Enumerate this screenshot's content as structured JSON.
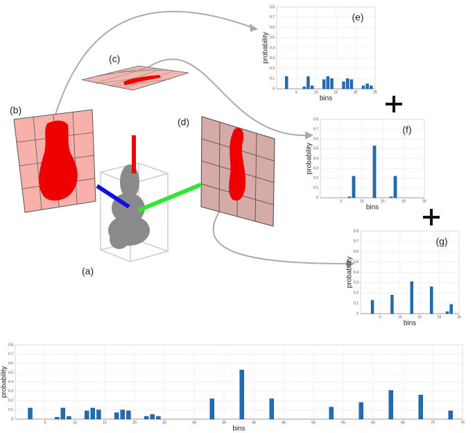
{
  "panel_labels": [
    "(a)",
    "(b)",
    "(c)",
    "(d)"
  ],
  "chart_data": [
    {
      "type": "bar",
      "label": "(e)",
      "xlabel": "bins",
      "ylabel": "probability",
      "color": "#1f6eb5",
      "x": [
        2.5,
        7,
        8,
        9,
        12,
        13,
        14,
        17,
        18,
        19,
        22,
        23,
        24
      ],
      "values": [
        0.12,
        0.02,
        0.12,
        0.03,
        0.09,
        0.12,
        0.1,
        0.07,
        0.1,
        0.09,
        0.03,
        0.05,
        0.03
      ],
      "xlim": [
        0,
        25
      ],
      "xticks": [
        5,
        10,
        15,
        20,
        25
      ],
      "ylim": [
        0,
        0.8
      ],
      "yticks": [
        0,
        0.1,
        0.2,
        0.3,
        0.4,
        0.5,
        0.6,
        0.7,
        0.8
      ],
      "grid": true
    },
    {
      "type": "bar",
      "label": "(f)",
      "xlabel": "bins",
      "ylabel": "probability",
      "color": "#1f6eb5",
      "x": [
        7,
        8,
        13,
        17,
        18
      ],
      "values": [
        0.01,
        0.22,
        0.53,
        0.01,
        0.22
      ],
      "xlim": [
        0,
        25
      ],
      "xticks": [
        5,
        10,
        15,
        20,
        25
      ],
      "ylim": [
        0,
        0.8
      ],
      "yticks": [
        0,
        0.1,
        0.2,
        0.3,
        0.4,
        0.5,
        0.6,
        0.7,
        0.8
      ],
      "grid": true
    },
    {
      "type": "bar",
      "label": "(g)",
      "xlabel": "bins",
      "ylabel": "probability",
      "color": "#1f6eb5",
      "x": [
        3,
        8,
        13,
        18,
        22,
        23
      ],
      "values": [
        0.13,
        0.18,
        0.31,
        0.26,
        0.02,
        0.09
      ],
      "xlim": [
        0,
        25
      ],
      "xticks": [
        5,
        10,
        15,
        20,
        25
      ],
      "ylim": [
        0,
        0.8
      ],
      "yticks": [
        0,
        0.1,
        0.2,
        0.3,
        0.4,
        0.5,
        0.6,
        0.7,
        0.8
      ],
      "grid": true
    },
    {
      "type": "bar",
      "xlabel": "bins",
      "ylabel": "probability",
      "color": "#1f6eb5",
      "x": [
        2.5,
        7,
        8,
        9,
        12,
        13,
        14,
        17,
        18,
        19,
        22,
        23,
        24,
        33,
        38,
        43,
        53,
        58,
        63,
        68,
        73
      ],
      "values": [
        0.12,
        0.02,
        0.12,
        0.03,
        0.09,
        0.12,
        0.1,
        0.07,
        0.1,
        0.09,
        0.03,
        0.05,
        0.03,
        0.22,
        0.53,
        0.22,
        0.13,
        0.18,
        0.31,
        0.26,
        0.09
      ],
      "xlim": [
        0,
        75
      ],
      "xticks": [
        5,
        10,
        15,
        20,
        25,
        30,
        35,
        40,
        45,
        50,
        55,
        60,
        65,
        70,
        75
      ],
      "ylim": [
        0,
        0.8
      ],
      "yticks": [
        0,
        0.1,
        0.2,
        0.3,
        0.4,
        0.5,
        0.6,
        0.7,
        0.8
      ],
      "grid": true
    }
  ]
}
